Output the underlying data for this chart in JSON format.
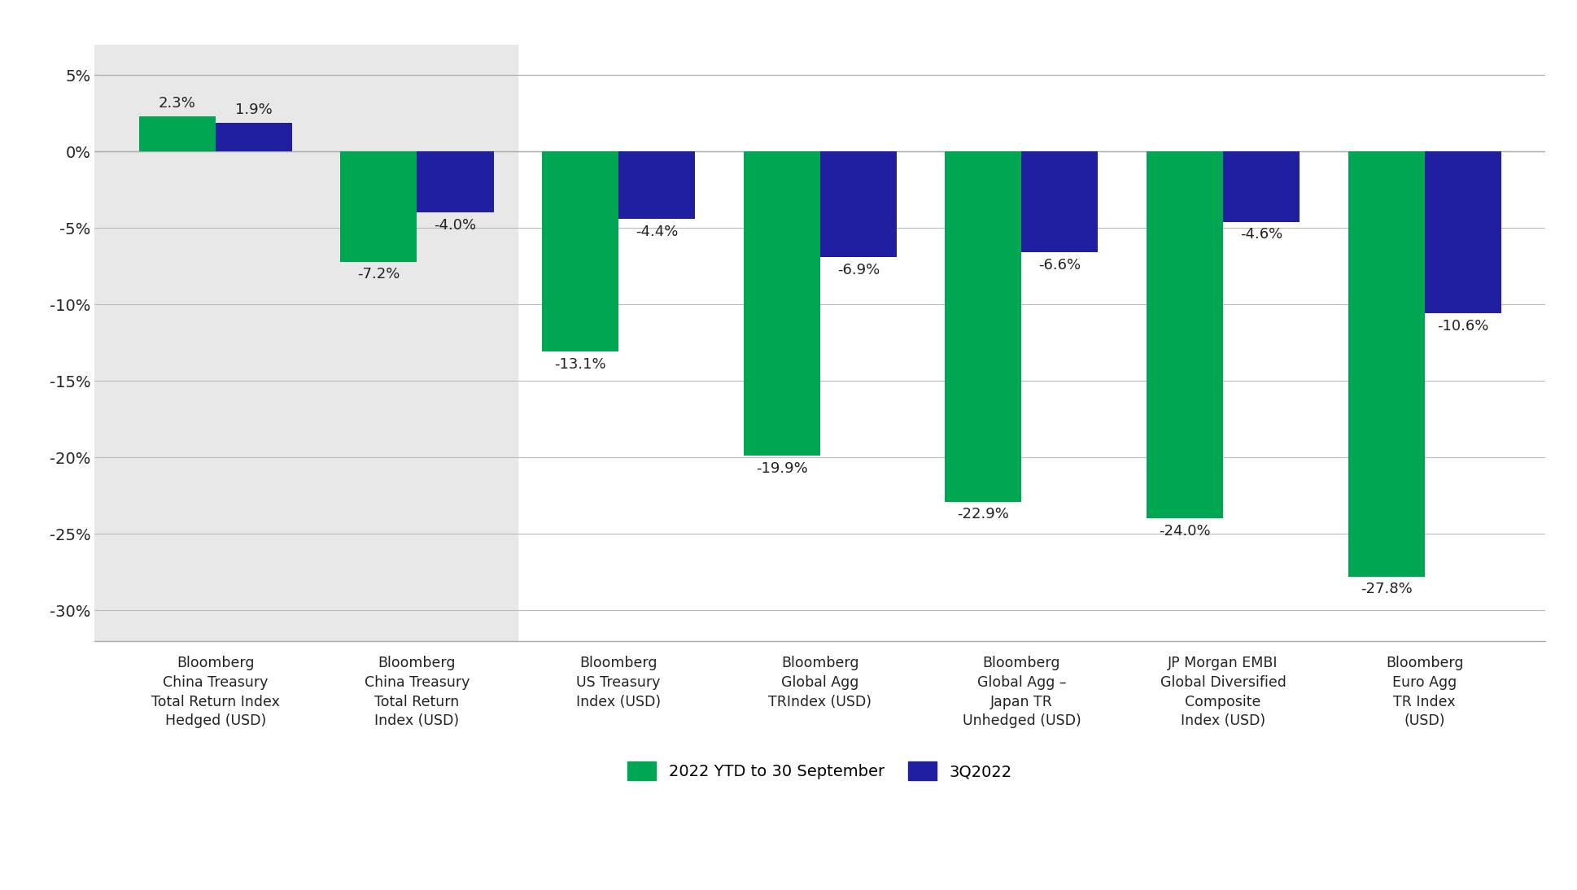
{
  "categories": [
    "Bloomberg\nChina Treasury\nTotal Return Index\nHedged (USD)",
    "Bloomberg\nChina Treasury\nTotal Return\nIndex (USD)",
    "Bloomberg\nUS Treasury\nIndex (USD)",
    "Bloomberg\nGlobal Agg\nTRIndex (USD)",
    "Bloomberg\nGlobal Agg –\nJapan TR\nUnhedged (USD)",
    "JP Morgan EMBI\nGlobal Diversified\nComposite\nIndex (USD)",
    "Bloomberg\nEuro Agg\nTR Index\n(USD)"
  ],
  "ytd_values": [
    2.3,
    -7.2,
    -13.1,
    -19.9,
    -22.9,
    -24.0,
    -27.8
  ],
  "q3_values": [
    1.9,
    -4.0,
    -4.4,
    -6.9,
    -6.6,
    -4.6,
    -10.6
  ],
  "ytd_color": "#00A651",
  "q3_color": "#1F1F9F",
  "background_shaded": "#E8E8E8",
  "background_white": "#FFFFFF",
  "shaded_group_count": 2,
  "ylim": [
    -32,
    7
  ],
  "yticks": [
    5,
    0,
    -5,
    -10,
    -15,
    -20,
    -25,
    -30
  ],
  "legend_ytd": "2022 YTD to 30 September",
  "legend_q3": "3Q2022",
  "bar_width": 0.38,
  "font_family": "DejaVu Sans",
  "label_fontsize": 13,
  "tick_fontsize": 14,
  "legend_fontsize": 14,
  "xticklabel_fontsize": 12.5
}
